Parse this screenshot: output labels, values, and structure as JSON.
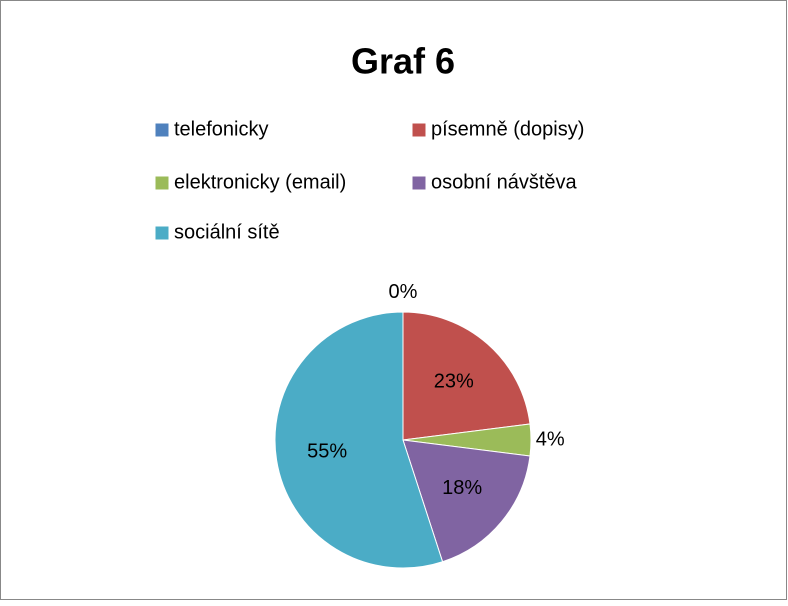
{
  "chart_data": {
    "type": "pie",
    "title": "Graf 6",
    "categories": [
      "telefonicky",
      "písemně (dopisy)",
      "elektronicky (email)",
      "osobní návštěva",
      "sociální sítě"
    ],
    "values": [
      0,
      23,
      4,
      18,
      55
    ],
    "value_labels": [
      "0%",
      "23%",
      "4%",
      "18%",
      "55%"
    ],
    "colors": [
      "#4f81bd",
      "#c0504d",
      "#9bbb59",
      "#8064a2",
      "#4bacc6"
    ],
    "legend": "top"
  }
}
